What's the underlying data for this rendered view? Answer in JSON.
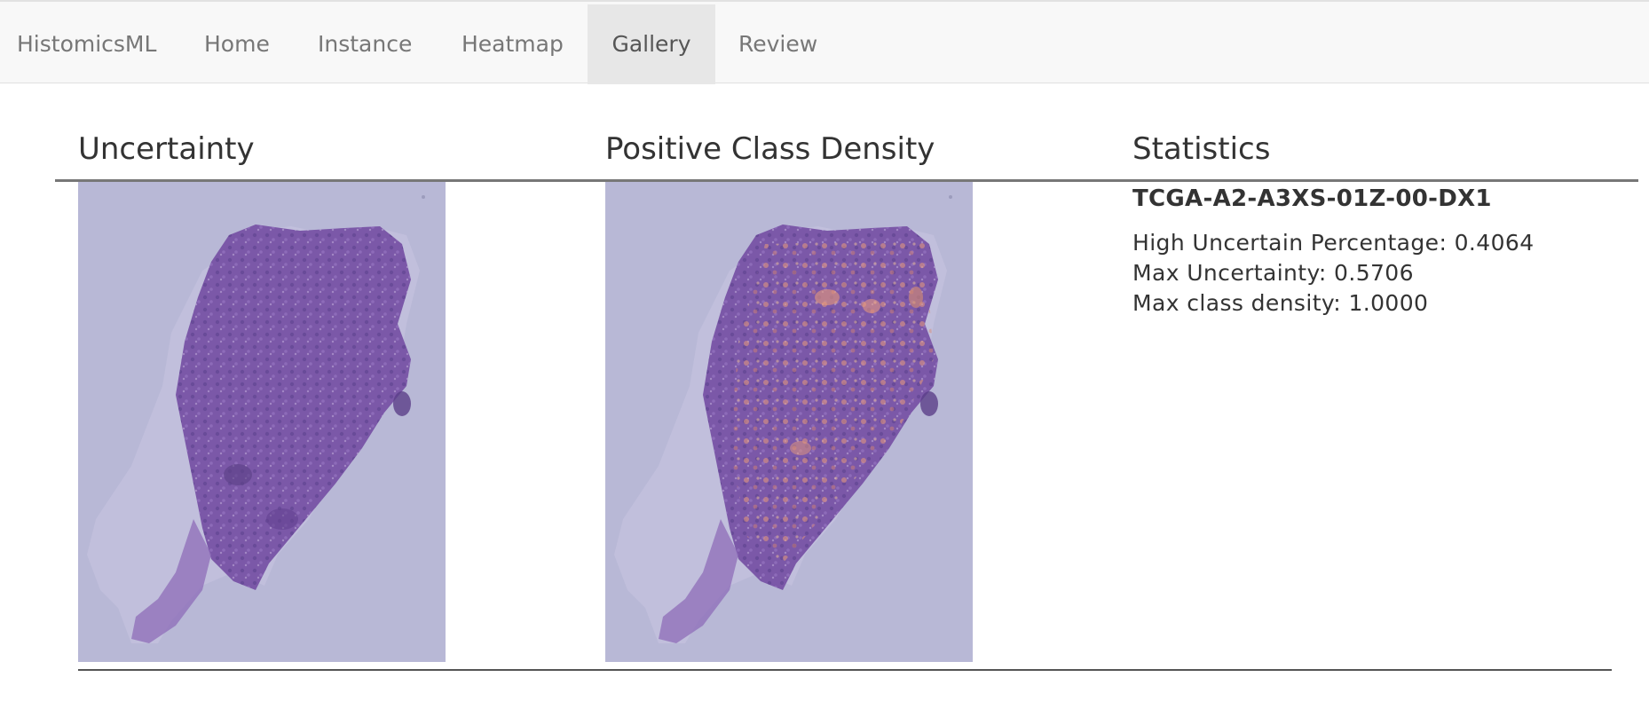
{
  "navbar": {
    "brand": "HistomicsML",
    "items": [
      {
        "label": "Home"
      },
      {
        "label": "Instance"
      },
      {
        "label": "Heatmap"
      },
      {
        "label": "Gallery",
        "active": true
      },
      {
        "label": "Review"
      }
    ]
  },
  "gallery": {
    "headers": {
      "uncertainty": "Uncertainty",
      "density": "Positive Class Density",
      "statistics": "Statistics"
    },
    "row": {
      "slide_name": "TCGA-A2-A3XS-01Z-00-DX1",
      "stats": [
        "High Uncertain Percentage: 0.4064",
        "Max Uncertainty: 0.5706",
        "Max class density: 1.0000"
      ]
    }
  },
  "colors": {
    "thumbnail_background": "#b8b8d6",
    "tissue": "#7b58a8",
    "density_overlay": "#e89a7a"
  }
}
